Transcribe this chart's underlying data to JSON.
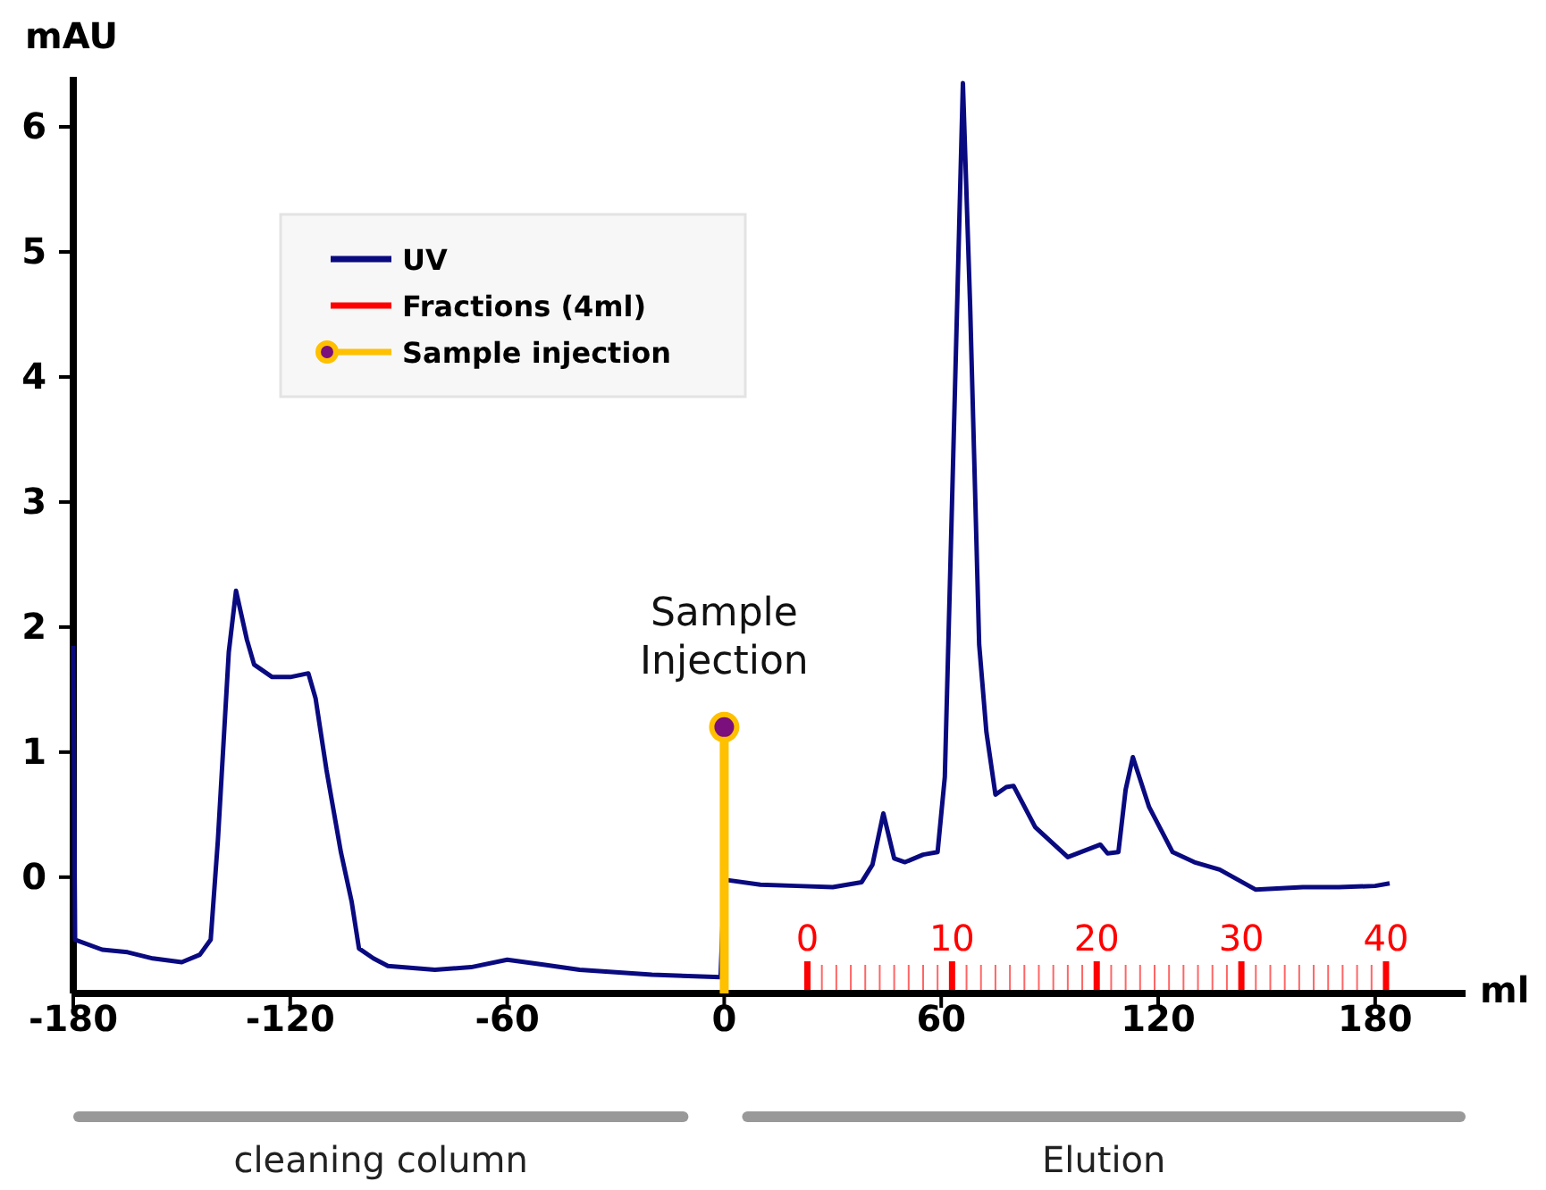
{
  "chart_data": {
    "type": "line",
    "xlabel": "ml",
    "ylabel": "mAU",
    "xlim": [
      -180,
      205
    ],
    "ylim": [
      -0.93,
      6.4
    ],
    "xticks": [
      -180,
      -120,
      -60,
      0,
      60,
      120,
      180
    ],
    "yticks": [
      0,
      1,
      2,
      3,
      4,
      5,
      6
    ],
    "x2label": "Fractions (4ml)",
    "x2lim": [
      -50.75,
      45.5
    ],
    "x2ticks": [
      0,
      {
        "value": 1,
        "label": null
      },
      {
        "value": 2,
        "label": null
      },
      {
        "value": 3,
        "label": null
      },
      {
        "value": 4,
        "label": null
      },
      {
        "value": 5,
        "label": null
      },
      {
        "value": 6,
        "label": null
      },
      {
        "value": 7,
        "label": null
      },
      {
        "value": 8,
        "label": null
      },
      {
        "value": 9,
        "label": null
      },
      10,
      {
        "value": 11,
        "label": null
      },
      {
        "value": 12,
        "label": null
      },
      {
        "value": 13,
        "label": null
      },
      {
        "value": 14,
        "label": null
      },
      {
        "value": 15,
        "label": null
      },
      {
        "value": 16,
        "label": null
      },
      {
        "value": 17,
        "label": null
      },
      {
        "value": 18,
        "label": null
      },
      {
        "value": 19,
        "label": null
      },
      20,
      {
        "value": 21,
        "label": null
      },
      {
        "value": 22,
        "label": null
      },
      {
        "value": 23,
        "label": null
      },
      {
        "value": 24,
        "label": null
      },
      {
        "value": 25,
        "label": null
      },
      {
        "value": 26,
        "label": null
      },
      {
        "value": 27,
        "label": null
      },
      {
        "value": 28,
        "label": null
      },
      {
        "value": 29,
        "label": null
      },
      30,
      {
        "value": 31,
        "label": null
      },
      {
        "value": 32,
        "label": null
      },
      {
        "value": 33,
        "label": null
      },
      {
        "value": 34,
        "label": null
      },
      {
        "value": 35,
        "label": null
      },
      {
        "value": 36,
        "label": null
      },
      {
        "value": 37,
        "label": null
      },
      {
        "value": 38,
        "label": null
      },
      {
        "value": 39,
        "label": null
      },
      40
    ],
    "series": [
      {
        "name": "UV",
        "color": "#0a0a80",
        "x": [
          -180,
          -179.5,
          -172,
          -165,
          -158,
          -150,
          -145,
          -142,
          -140,
          -137,
          -135,
          -132,
          -130,
          -125,
          -120,
          -115,
          -113,
          -110,
          -106,
          -103,
          -101,
          -97,
          -93,
          -80,
          -70,
          -60,
          -50,
          -40,
          -30,
          -20,
          -10,
          -1,
          0,
          10,
          20,
          30,
          38,
          41,
          44,
          47,
          50,
          55,
          59,
          61,
          63,
          66,
          68,
          70.5,
          72.5,
          75,
          78,
          80,
          86,
          95,
          104,
          106,
          109,
          111,
          113,
          117.5,
          124,
          130,
          137,
          147,
          160,
          170,
          180,
          184
        ],
        "values": [
          1.85,
          -0.5,
          -0.58,
          -0.6,
          -0.65,
          -0.68,
          -0.62,
          -0.5,
          0.3,
          1.8,
          2.29,
          1.9,
          1.7,
          1.6,
          1.6,
          1.63,
          1.43,
          0.86,
          0.2,
          -0.2,
          -0.57,
          -0.65,
          -0.71,
          -0.74,
          -0.72,
          -0.66,
          -0.7,
          -0.74,
          -0.76,
          -0.78,
          -0.79,
          -0.8,
          -0.02,
          -0.06,
          -0.07,
          -0.08,
          -0.04,
          0.1,
          0.51,
          0.15,
          0.12,
          0.18,
          0.2,
          0.8,
          3,
          6.35,
          4.57,
          1.86,
          1.16,
          0.66,
          0.72,
          0.73,
          0.4,
          0.16,
          0.26,
          0.19,
          0.2,
          0.7,
          0.96,
          0.56,
          0.2,
          0.12,
          0.06,
          -0.1,
          -0.08,
          -0.08,
          -0.07,
          -0.05
        ]
      },
      {
        "name": "Sample injection",
        "type": "lollipop",
        "color": "#ffc000",
        "x": [
          0
        ],
        "values": [
          1.2
        ]
      }
    ],
    "annotations": [
      {
        "text": "Sample Injection",
        "x": 0,
        "y": 1.2
      },
      "cleaning column",
      "Elution"
    ],
    "legend": "top left"
  }
}
